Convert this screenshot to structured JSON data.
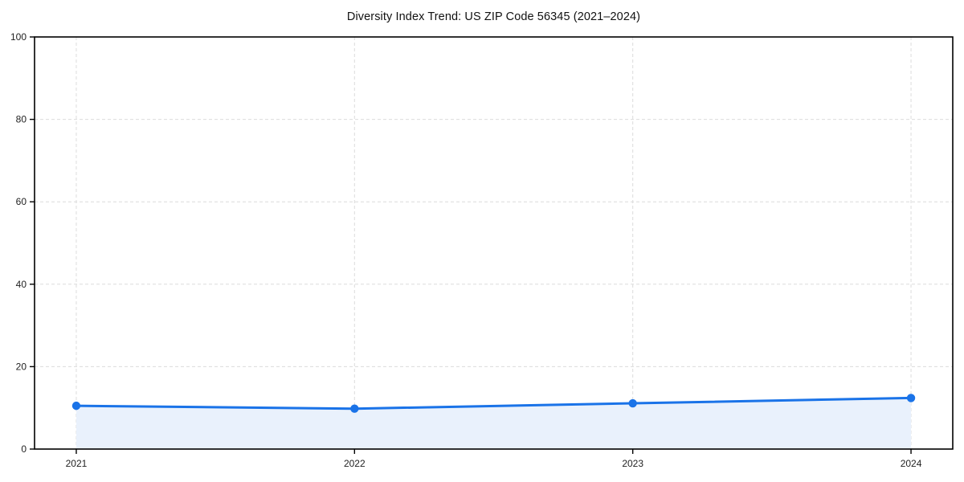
{
  "page": {
    "background": "#ffffff"
  },
  "chart_data": {
    "type": "area",
    "title": "Diversity Index Trend: US ZIP Code 56345 (2021–2024)",
    "x": [
      2021,
      2022,
      2023,
      2024
    ],
    "values": [
      10.5,
      9.8,
      11.1,
      12.4
    ],
    "xlabel": "",
    "ylabel": "",
    "xticks": [
      "2021",
      "2022",
      "2023",
      "2024"
    ],
    "yticks": [
      0,
      20,
      40,
      60,
      80,
      100
    ],
    "xlim": [
      2020.85,
      2024.15
    ],
    "ylim": [
      0,
      100
    ],
    "grid": "dashed-both-axes",
    "legend": "none",
    "colors": {
      "line": "#1a73e8",
      "marker": "#1a73e8",
      "area_fill": "#e9f1fc",
      "grid": "#dcdcdc",
      "axis": "#000000",
      "title_text": "#111111",
      "tick_text": "#222222"
    }
  }
}
